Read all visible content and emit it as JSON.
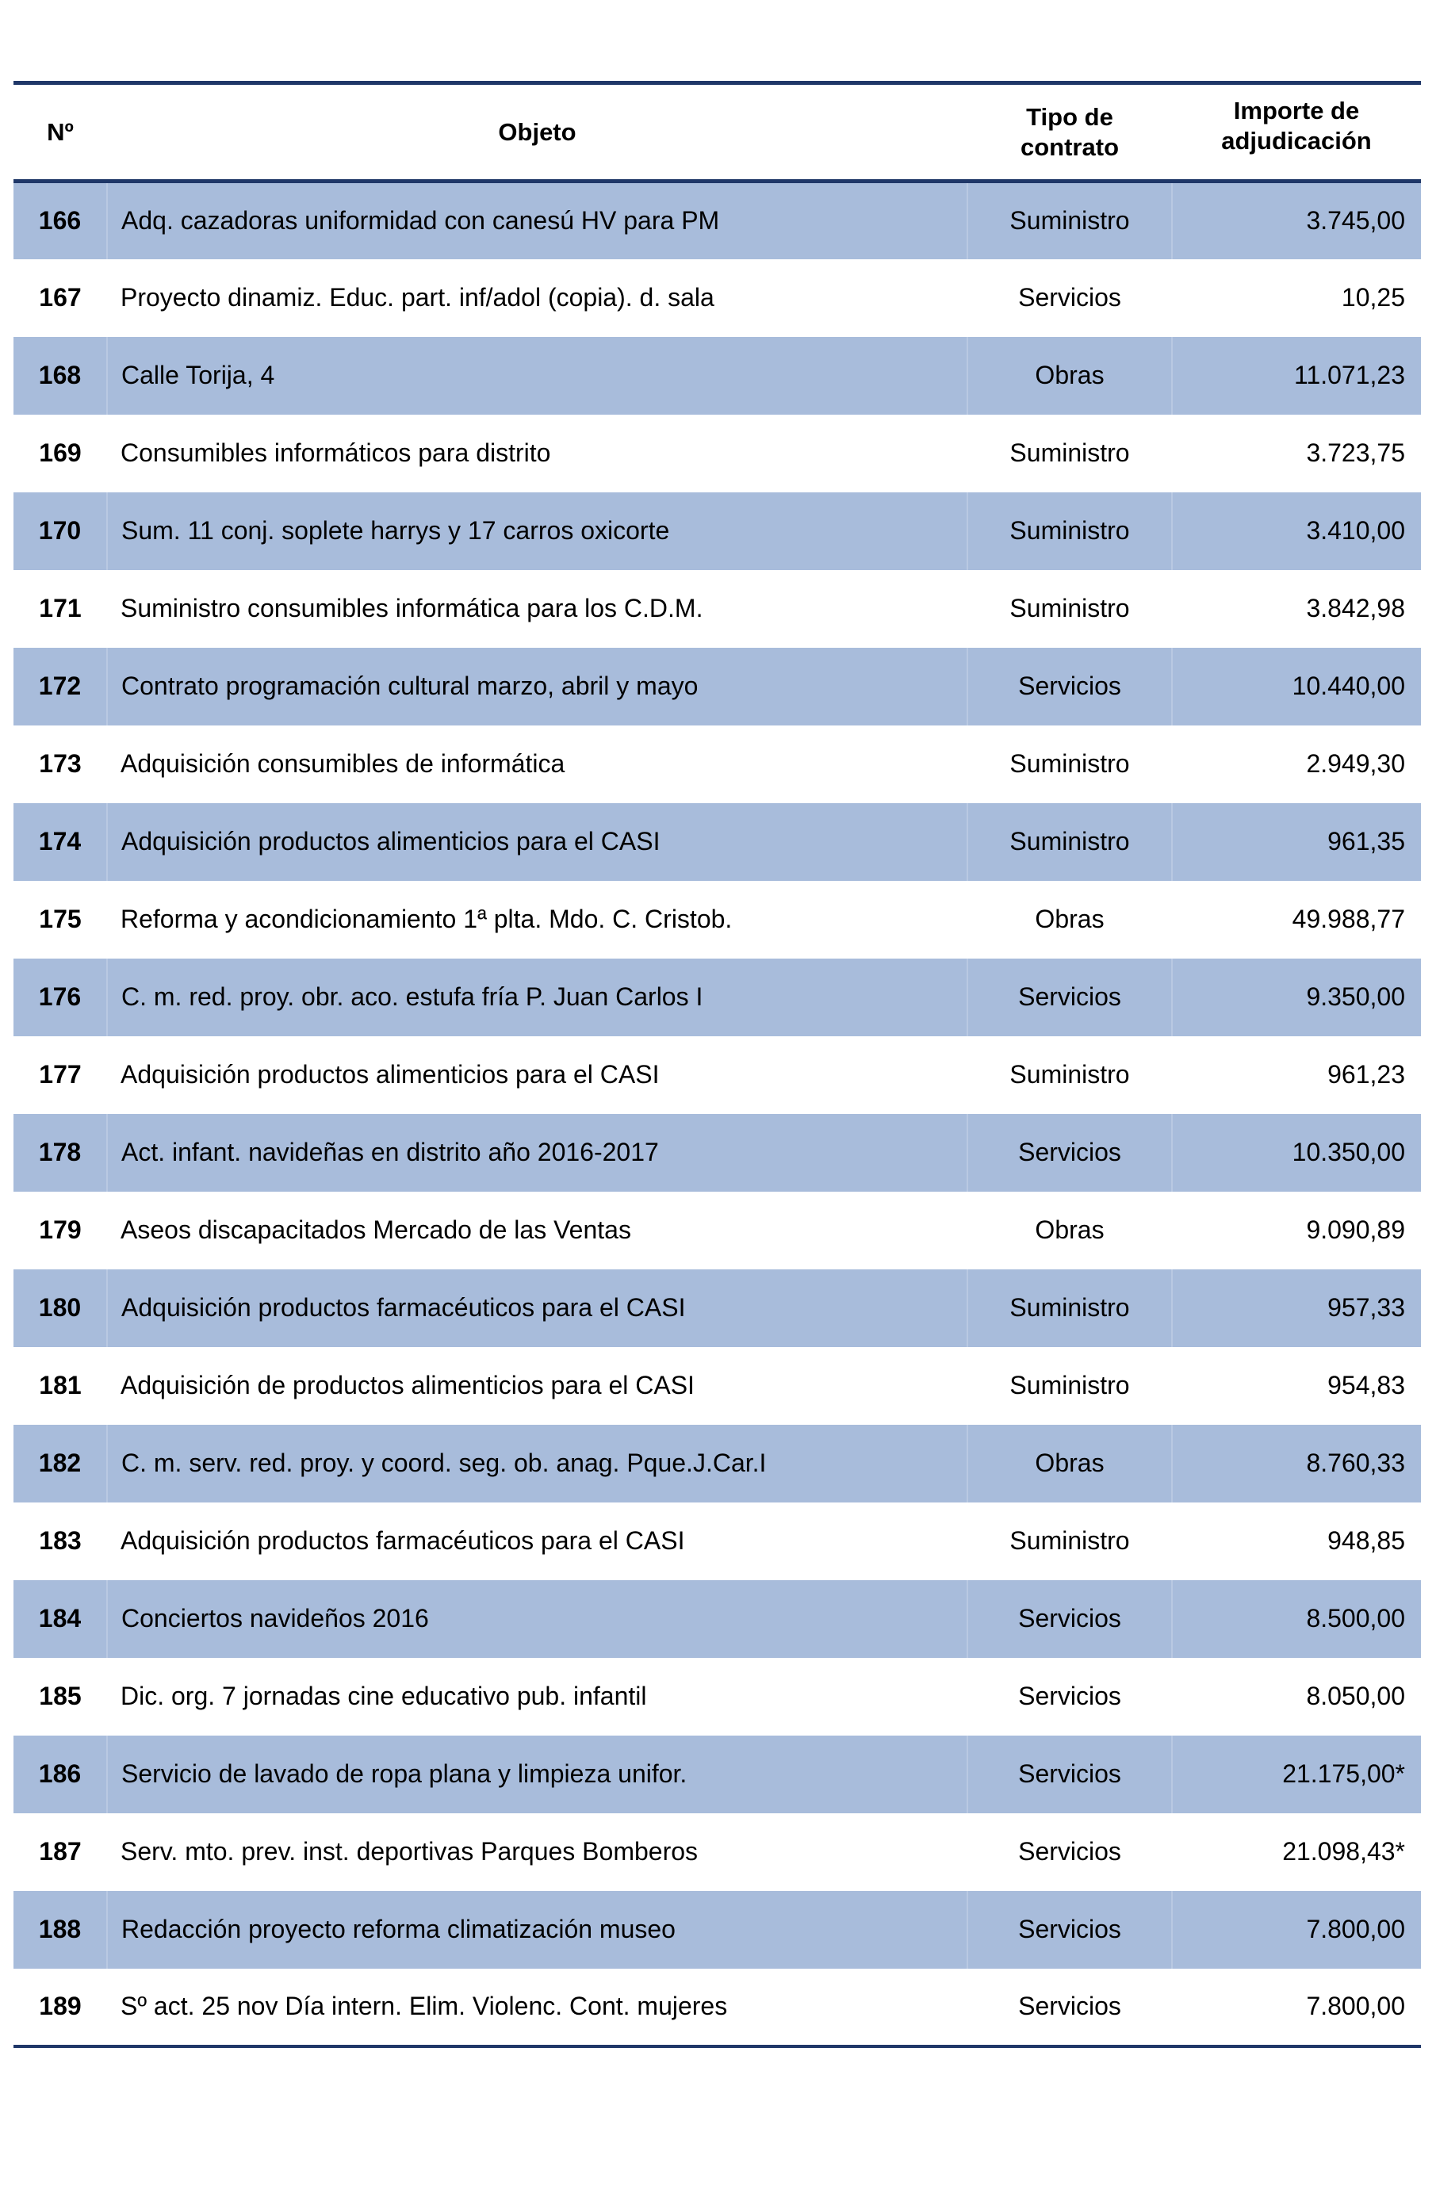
{
  "table": {
    "headers": {
      "num": "Nº",
      "objeto": "Objeto",
      "tipo": "Tipo de contrato",
      "importe": "Importe de adjudicación"
    },
    "rows": [
      {
        "num": "166",
        "objeto": "Adq. cazadoras uniformidad con canesú HV para PM",
        "tipo": "Suministro",
        "importe": "3.745,00",
        "shaded": true
      },
      {
        "num": "167",
        "objeto": "Proyecto dinamiz. Educ. part. inf/adol (copia). d. sala",
        "tipo": "Servicios",
        "importe": "10,25",
        "shaded": false
      },
      {
        "num": "168",
        "objeto": "Calle Torija, 4",
        "tipo": "Obras",
        "importe": "11.071,23",
        "shaded": true
      },
      {
        "num": "169",
        "objeto": "Consumibles informáticos para distrito",
        "tipo": "Suministro",
        "importe": "3.723,75",
        "shaded": false
      },
      {
        "num": "170",
        "objeto": "Sum. 11 conj. soplete harrys y 17 carros oxicorte",
        "tipo": "Suministro",
        "importe": "3.410,00",
        "shaded": true
      },
      {
        "num": "171",
        "objeto": "Suministro consumibles informática para los C.D.M.",
        "tipo": "Suministro",
        "importe": "3.842,98",
        "shaded": false
      },
      {
        "num": "172",
        "objeto": "Contrato programación cultural marzo, abril y mayo",
        "tipo": "Servicios",
        "importe": "10.440,00",
        "shaded": true
      },
      {
        "num": "173",
        "objeto": "Adquisición consumibles de informática",
        "tipo": "Suministro",
        "importe": "2.949,30",
        "shaded": false
      },
      {
        "num": "174",
        "objeto": "Adquisición productos alimenticios para el CASI",
        "tipo": "Suministro",
        "importe": "961,35",
        "shaded": true
      },
      {
        "num": "175",
        "objeto": "Reforma y acondicionamiento 1ª plta. Mdo. C. Cristob.",
        "tipo": "Obras",
        "importe": "49.988,77",
        "shaded": false
      },
      {
        "num": "176",
        "objeto": "C. m. red. proy. obr. aco. estufa fría P. Juan Carlos I",
        "tipo": "Servicios",
        "importe": "9.350,00",
        "shaded": true
      },
      {
        "num": "177",
        "objeto": "Adquisición productos alimenticios para el CASI",
        "tipo": "Suministro",
        "importe": "961,23",
        "shaded": false
      },
      {
        "num": "178",
        "objeto": "Act. infant. navideñas en distrito año 2016-2017",
        "tipo": "Servicios",
        "importe": "10.350,00",
        "shaded": true
      },
      {
        "num": "179",
        "objeto": "Aseos discapacitados Mercado de las Ventas",
        "tipo": "Obras",
        "importe": "9.090,89",
        "shaded": false
      },
      {
        "num": "180",
        "objeto": "Adquisición productos farmacéuticos para el CASI",
        "tipo": "Suministro",
        "importe": "957,33",
        "shaded": true
      },
      {
        "num": "181",
        "objeto": "Adquisición de productos alimenticios para el CASI",
        "tipo": "Suministro",
        "importe": "954,83",
        "shaded": false
      },
      {
        "num": "182",
        "objeto": "C. m. serv. red. proy. y coord. seg. ob. anag. Pque.J.Car.I",
        "tipo": "Obras",
        "importe": "8.760,33",
        "shaded": true
      },
      {
        "num": "183",
        "objeto": "Adquisición productos farmacéuticos para el CASI",
        "tipo": "Suministro",
        "importe": "948,85",
        "shaded": false
      },
      {
        "num": "184",
        "objeto": "Conciertos navideños 2016",
        "tipo": "Servicios",
        "importe": "8.500,00",
        "shaded": true
      },
      {
        "num": "185",
        "objeto": "Dic. org. 7 jornadas cine educativo pub. infantil",
        "tipo": "Servicios",
        "importe": "8.050,00",
        "shaded": false
      },
      {
        "num": "186",
        "objeto": "Servicio de lavado de ropa plana y limpieza unifor.",
        "tipo": "Servicios",
        "importe": "21.175,00*",
        "shaded": true
      },
      {
        "num": "187",
        "objeto": "Serv. mto. prev. inst. deportivas Parques Bomberos",
        "tipo": "Servicios",
        "importe": "21.098,43*",
        "shaded": false
      },
      {
        "num": "188",
        "objeto": "Redacción proyecto reforma climatización museo",
        "tipo": "Servicios",
        "importe": "7.800,00",
        "shaded": true
      },
      {
        "num": "189",
        "objeto": "Sº act. 25 nov Día intern. Elim. Violenc. Cont. mujeres",
        "tipo": "Servicios",
        "importe": "7.800,00",
        "shaded": false
      }
    ]
  },
  "colors": {
    "shaded_row": "#a8bcdb",
    "rule": "#1f3768"
  }
}
